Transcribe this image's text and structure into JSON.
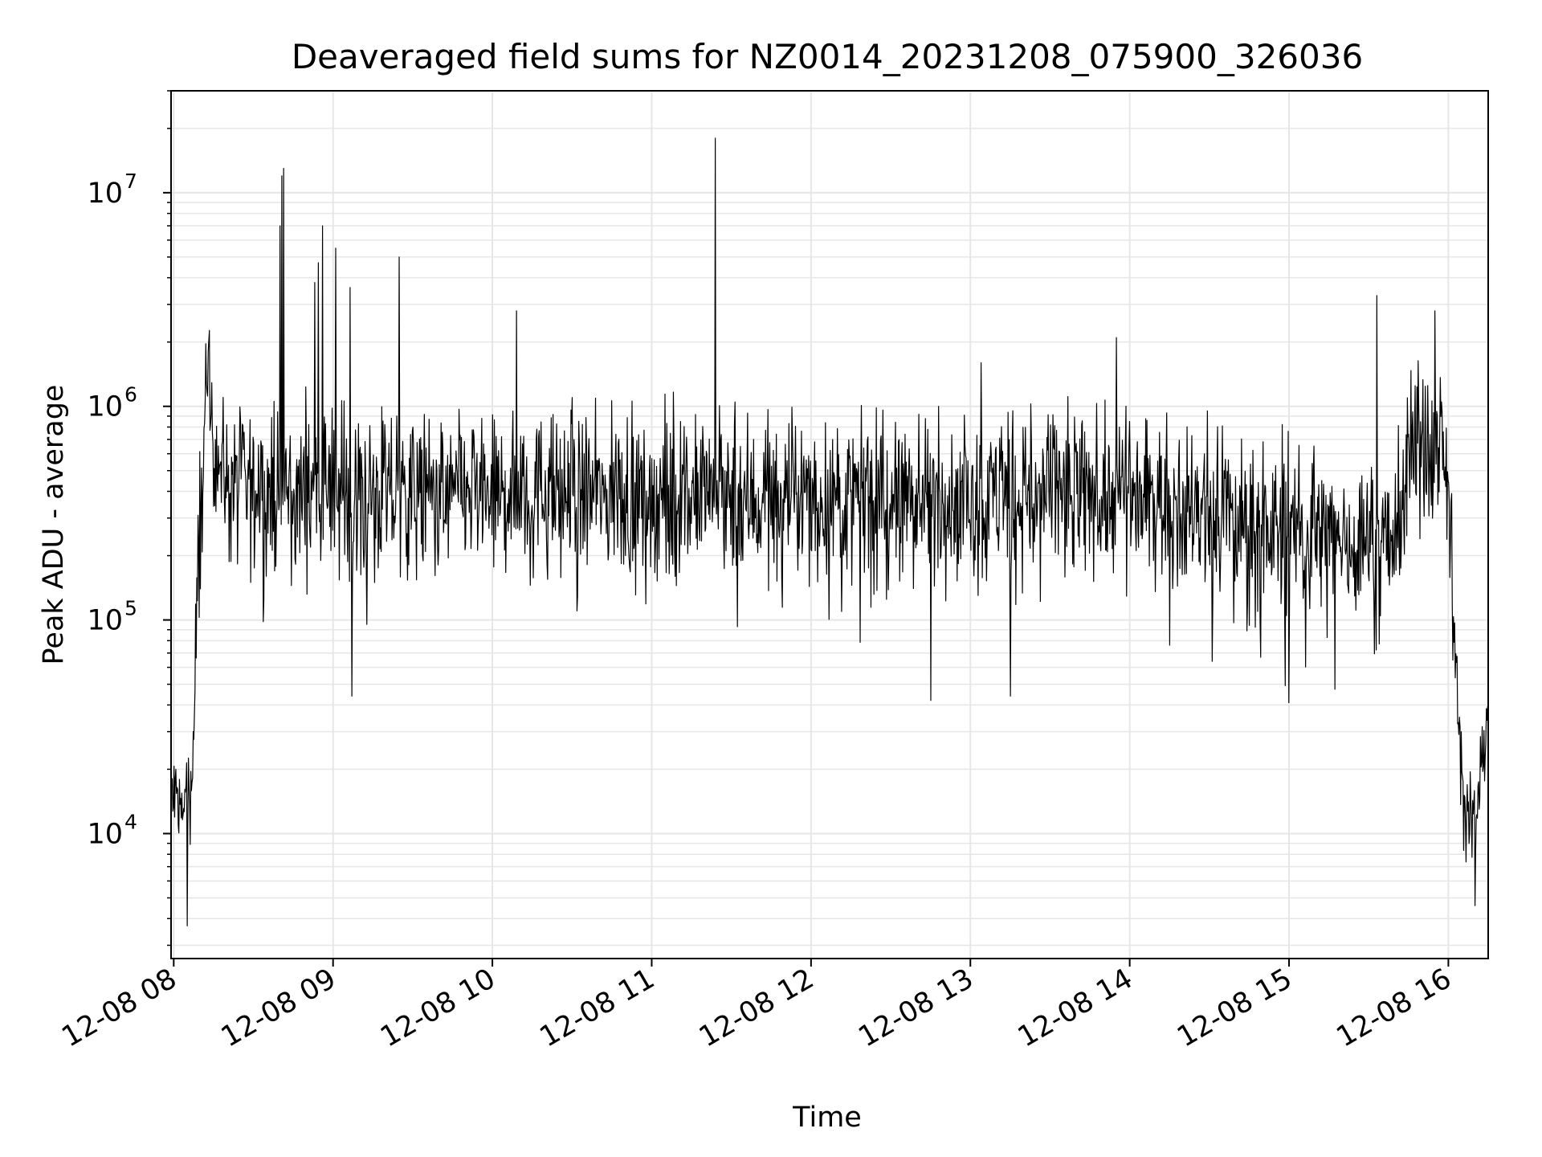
{
  "chart_data": {
    "type": "line",
    "title": "Deaveraged field sums for NZ0014_20231208_075900_326036",
    "xlabel": "Time",
    "ylabel": "Peak ADU - average",
    "x_axis": {
      "type": "time",
      "range": [
        "2023-12-08T07:59:00",
        "2023-12-08T16:15:00"
      ],
      "ticks": [
        {
          "t": "2023-12-08T08:00",
          "label": "12-08 08"
        },
        {
          "t": "2023-12-08T09:00",
          "label": "12-08 09"
        },
        {
          "t": "2023-12-08T10:00",
          "label": "12-08 10"
        },
        {
          "t": "2023-12-08T11:00",
          "label": "12-08 11"
        },
        {
          "t": "2023-12-08T12:00",
          "label": "12-08 12"
        },
        {
          "t": "2023-12-08T13:00",
          "label": "12-08 13"
        },
        {
          "t": "2023-12-08T14:00",
          "label": "12-08 14"
        },
        {
          "t": "2023-12-08T15:00",
          "label": "12-08 15"
        },
        {
          "t": "2023-12-08T16:00",
          "label": "12-08 16"
        }
      ]
    },
    "y_axis": {
      "scale": "log",
      "range": [
        2600,
        30000000
      ],
      "ticks": [
        {
          "value": 10000,
          "base": "10",
          "exp": "4"
        },
        {
          "value": 100000,
          "base": "10",
          "exp": "5"
        },
        {
          "value": 1000000,
          "base": "10",
          "exp": "6"
        },
        {
          "value": 10000000,
          "base": "10",
          "exp": "7"
        }
      ]
    },
    "grid": true,
    "line_color": "#000000",
    "grid_color": "#e6e6e6",
    "series": [
      {
        "envelope": [
          {
            "t": "2023-12-08T07:59:00",
            "level": 15000
          },
          {
            "t": "2023-12-08T08:04:00",
            "level": 13000
          },
          {
            "t": "2023-12-08T08:07:00",
            "level": 18000
          },
          {
            "t": "2023-12-08T08:09:00",
            "level": 150000
          },
          {
            "t": "2023-12-08T08:11:00",
            "level": 600000
          },
          {
            "t": "2023-12-08T08:13:00",
            "level": 1000000
          },
          {
            "t": "2023-12-08T08:16:00",
            "level": 700000
          },
          {
            "t": "2023-12-08T08:20:00",
            "level": 420000
          },
          {
            "t": "2023-12-08T09:00:00",
            "level": 380000
          },
          {
            "t": "2023-12-08T09:30:00",
            "level": 380000
          },
          {
            "t": "2023-12-08T10:00:00",
            "level": 400000
          },
          {
            "t": "2023-12-08T12:00:00",
            "level": 360000
          },
          {
            "t": "2023-12-08T14:00:00",
            "level": 380000
          },
          {
            "t": "2023-12-08T15:00:00",
            "level": 250000
          },
          {
            "t": "2023-12-08T15:40:00",
            "level": 230000
          },
          {
            "t": "2023-12-08T15:45:00",
            "level": 600000
          },
          {
            "t": "2023-12-08T15:59:00",
            "level": 650000
          },
          {
            "t": "2023-12-08T16:01:00",
            "level": 200000
          },
          {
            "t": "2023-12-08T16:04:00",
            "level": 30000
          },
          {
            "t": "2023-12-08T16:06:00",
            "level": 12000
          },
          {
            "t": "2023-12-08T16:10:00",
            "level": 11000
          },
          {
            "t": "2023-12-08T16:15:00",
            "level": 40000
          }
        ],
        "spikes": [
          {
            "t": "2023-12-08T08:13:00",
            "value": 1800000
          },
          {
            "t": "2023-12-08T08:40:00",
            "value": 7000000
          },
          {
            "t": "2023-12-08T08:40:40",
            "value": 12000000
          },
          {
            "t": "2023-12-08T08:41:20",
            "value": 13000000
          },
          {
            "t": "2023-12-08T08:53:00",
            "value": 3800000
          },
          {
            "t": "2023-12-08T08:54:30",
            "value": 4700000
          },
          {
            "t": "2023-12-08T08:56:00",
            "value": 7000000
          },
          {
            "t": "2023-12-08T09:01:00",
            "value": 5500000
          },
          {
            "t": "2023-12-08T09:06:30",
            "value": 3600000
          },
          {
            "t": "2023-12-08T09:25:00",
            "value": 5000000
          },
          {
            "t": "2023-12-08T10:09:00",
            "value": 2800000
          },
          {
            "t": "2023-12-08T10:30:00",
            "value": 1100000
          },
          {
            "t": "2023-12-08T11:24:00",
            "value": 18000000
          },
          {
            "t": "2023-12-08T12:48:00",
            "value": 1000000
          },
          {
            "t": "2023-12-08T13:04:00",
            "value": 1600000
          },
          {
            "t": "2023-12-08T13:55:00",
            "value": 2100000
          },
          {
            "t": "2023-12-08T15:33:00",
            "value": 3300000
          },
          {
            "t": "2023-12-08T15:55:00",
            "value": 2800000
          }
        ],
        "dips": [
          {
            "t": "2023-12-08T08:05:00",
            "value": 3700
          },
          {
            "t": "2023-12-08T09:07:00",
            "value": 44000
          },
          {
            "t": "2023-12-08T12:45:00",
            "value": 42000
          },
          {
            "t": "2023-12-08T13:15:00",
            "value": 44000
          },
          {
            "t": "2023-12-08T15:00:00",
            "value": 41000
          },
          {
            "t": "2023-12-08T16:10:00",
            "value": 4600
          }
        ]
      }
    ]
  }
}
